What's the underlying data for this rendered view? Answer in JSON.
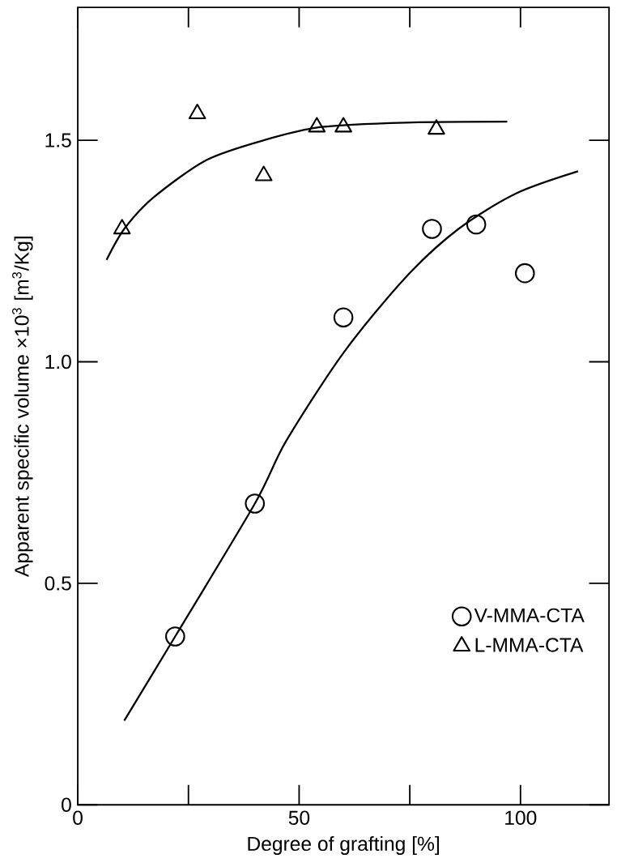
{
  "chart_data": {
    "type": "scatter",
    "xlabel": "Degree of grafting [%]",
    "ylabel": "Apparent specific volume ×10$^{3}$  [m$^{3}$/Kg]",
    "xlim": [
      0,
      120
    ],
    "ylim": [
      0,
      1.8
    ],
    "xticks": [
      0,
      {
        "value": 25,
        "label": null
      },
      50,
      {
        "value": 75,
        "label": null
      },
      100
    ],
    "yticks": [
      0,
      0.5,
      {
        "value": 1,
        "label": "1.0"
      },
      1.5
    ],
    "grid": false,
    "legend": "bottom right",
    "series": [
      {
        "name": "V-MMA-CTA",
        "color": "#000000",
        "marker": "circle",
        "x": [
          22,
          40,
          60,
          80,
          90,
          101
        ],
        "values": [
          0.38,
          0.68,
          1.1,
          1.3,
          1.31,
          1.2
        ]
      },
      {
        "name": "L-MMA-CTA",
        "color": "#000000",
        "marker": "triangle",
        "x": [
          10,
          27,
          42,
          54,
          60,
          81
        ],
        "values": [
          1.3,
          1.56,
          1.42,
          1.53,
          1.53,
          1.525
        ]
      },
      {
        "type": "line",
        "color": "#000000",
        "x": [
          10.5,
          22,
          40,
          47,
          60,
          74,
          86,
          99,
          113
        ],
        "values": [
          0.19,
          0.38,
          0.68,
          0.82,
          1.02,
          1.19,
          1.3,
          1.38,
          1.43
        ]
      },
      {
        "type": "line",
        "color": "#000000",
        "x": [
          6.5,
          10.5,
          17,
          29,
          42,
          55,
          74,
          97
        ],
        "values": [
          1.23,
          1.3,
          1.37,
          1.455,
          1.5,
          1.53,
          1.54,
          1.542
        ]
      }
    ]
  }
}
